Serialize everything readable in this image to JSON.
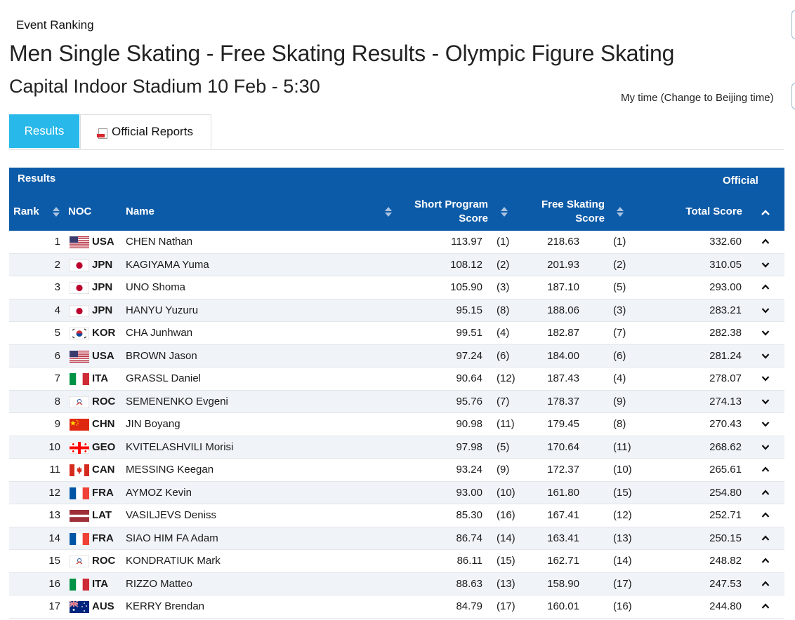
{
  "header": {
    "event_link": "Event Ranking",
    "title": "Men Single Skating - Free Skating Results - Olympic Figure Skating",
    "subtitle": "Capital Indoor Stadium 10 Feb - 5:30",
    "my_time": "My time (Change to Beijing time)"
  },
  "tabs": {
    "results": "Results",
    "official_reports": "Official Reports"
  },
  "table": {
    "caption": "Results",
    "status": "Official",
    "columns": {
      "rank": "Rank",
      "noc": "NOC",
      "name": "Name",
      "sp_line1": "Short Program",
      "sp_line2": "Score",
      "fs_line1": "Free Skating",
      "fs_line2": "Score",
      "total": "Total Score"
    },
    "rows": [
      {
        "rank": "1",
        "noc": "USA",
        "flag": "usa",
        "name": "CHEN Nathan",
        "sp": "113.97",
        "sp_rank": "(1)",
        "fs": "218.63",
        "fs_rank": "(1)",
        "total": "332.60",
        "chevron": "up"
      },
      {
        "rank": "2",
        "noc": "JPN",
        "flag": "jpn",
        "name": "KAGIYAMA Yuma",
        "sp": "108.12",
        "sp_rank": "(2)",
        "fs": "201.93",
        "fs_rank": "(2)",
        "total": "310.05",
        "chevron": "down"
      },
      {
        "rank": "3",
        "noc": "JPN",
        "flag": "jpn",
        "name": "UNO Shoma",
        "sp": "105.90",
        "sp_rank": "(3)",
        "fs": "187.10",
        "fs_rank": "(5)",
        "total": "293.00",
        "chevron": "up"
      },
      {
        "rank": "4",
        "noc": "JPN",
        "flag": "jpn",
        "name": "HANYU Yuzuru",
        "sp": "95.15",
        "sp_rank": "(8)",
        "fs": "188.06",
        "fs_rank": "(3)",
        "total": "283.21",
        "chevron": "down"
      },
      {
        "rank": "5",
        "noc": "KOR",
        "flag": "kor",
        "name": "CHA Junhwan",
        "sp": "99.51",
        "sp_rank": "(4)",
        "fs": "182.87",
        "fs_rank": "(7)",
        "total": "282.38",
        "chevron": "down"
      },
      {
        "rank": "6",
        "noc": "USA",
        "flag": "usa",
        "name": "BROWN Jason",
        "sp": "97.24",
        "sp_rank": "(6)",
        "fs": "184.00",
        "fs_rank": "(6)",
        "total": "281.24",
        "chevron": "down"
      },
      {
        "rank": "7",
        "noc": "ITA",
        "flag": "ita",
        "name": "GRASSL Daniel",
        "sp": "90.64",
        "sp_rank": "(12)",
        "fs": "187.43",
        "fs_rank": "(4)",
        "total": "278.07",
        "chevron": "down"
      },
      {
        "rank": "8",
        "noc": "ROC",
        "flag": "roc",
        "name": "SEMENENKO Evgeni",
        "sp": "95.76",
        "sp_rank": "(7)",
        "fs": "178.37",
        "fs_rank": "(9)",
        "total": "274.13",
        "chevron": "down"
      },
      {
        "rank": "9",
        "noc": "CHN",
        "flag": "chn",
        "name": "JIN Boyang",
        "sp": "90.98",
        "sp_rank": "(11)",
        "fs": "179.45",
        "fs_rank": "(8)",
        "total": "270.43",
        "chevron": "down"
      },
      {
        "rank": "10",
        "noc": "GEO",
        "flag": "geo",
        "name": "KVITELASHVILI Morisi",
        "sp": "97.98",
        "sp_rank": "(5)",
        "fs": "170.64",
        "fs_rank": "(11)",
        "total": "268.62",
        "chevron": "down"
      },
      {
        "rank": "11",
        "noc": "CAN",
        "flag": "can",
        "name": "MESSING Keegan",
        "sp": "93.24",
        "sp_rank": "(9)",
        "fs": "172.37",
        "fs_rank": "(10)",
        "total": "265.61",
        "chevron": "up"
      },
      {
        "rank": "12",
        "noc": "FRA",
        "flag": "fra",
        "name": "AYMOZ Kevin",
        "sp": "93.00",
        "sp_rank": "(10)",
        "fs": "161.80",
        "fs_rank": "(15)",
        "total": "254.80",
        "chevron": "up"
      },
      {
        "rank": "13",
        "noc": "LAT",
        "flag": "lat",
        "name": "VASILJEVS Deniss",
        "sp": "85.30",
        "sp_rank": "(16)",
        "fs": "167.41",
        "fs_rank": "(12)",
        "total": "252.71",
        "chevron": "up"
      },
      {
        "rank": "14",
        "noc": "FRA",
        "flag": "fra",
        "name": "SIAO HIM FA Adam",
        "sp": "86.74",
        "sp_rank": "(14)",
        "fs": "163.41",
        "fs_rank": "(13)",
        "total": "250.15",
        "chevron": "up"
      },
      {
        "rank": "15",
        "noc": "ROC",
        "flag": "roc",
        "name": "KONDRATIUK Mark",
        "sp": "86.11",
        "sp_rank": "(15)",
        "fs": "162.71",
        "fs_rank": "(14)",
        "total": "248.82",
        "chevron": "up"
      },
      {
        "rank": "16",
        "noc": "ITA",
        "flag": "ita",
        "name": "RIZZO Matteo",
        "sp": "88.63",
        "sp_rank": "(13)",
        "fs": "158.90",
        "fs_rank": "(17)",
        "total": "247.53",
        "chevron": "up"
      },
      {
        "rank": "17",
        "noc": "AUS",
        "flag": "aus",
        "name": "KERRY Brendan",
        "sp": "84.79",
        "sp_rank": "(17)",
        "fs": "160.01",
        "fs_rank": "(16)",
        "total": "244.80",
        "chevron": "up"
      }
    ]
  },
  "colors": {
    "header_bg": "#0c5ba8",
    "active_tab": "#29b8ea",
    "row_alt": "#f0f4f8"
  }
}
